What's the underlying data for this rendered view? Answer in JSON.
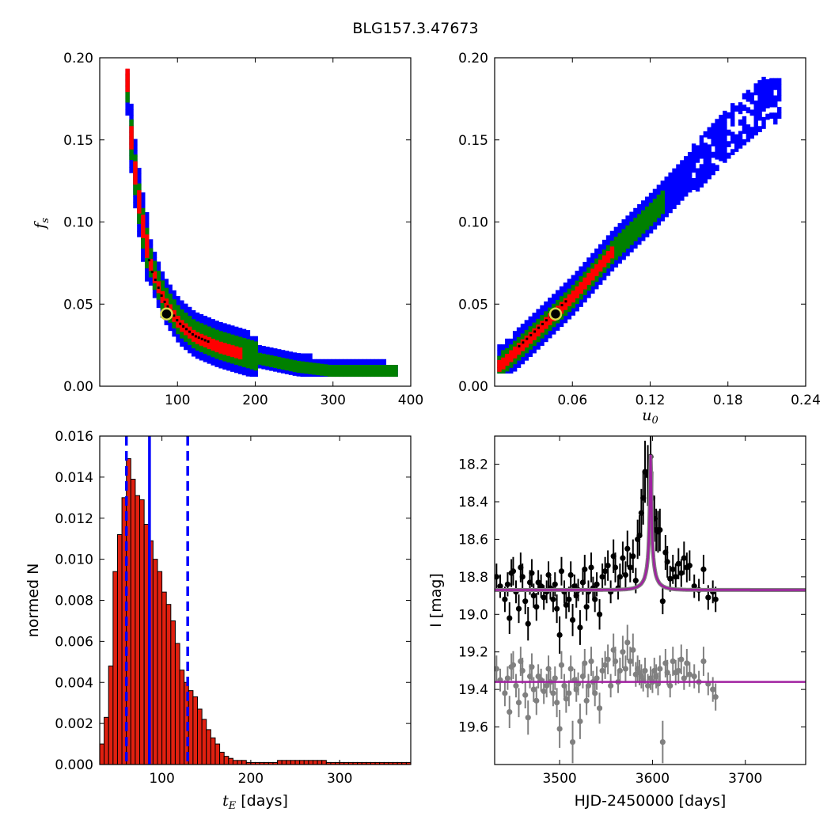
{
  "title": "BLG157.3.47673",
  "colors": {
    "sigma3": "#0000ff",
    "sigma2": "#008000",
    "sigma1": "#ff0000",
    "best": "#000000",
    "model": "#a020a0",
    "marker_ring": "#d8d848",
    "data_main": "#000000",
    "data_resid": "#808080",
    "hist_fill": "#e02010"
  },
  "chart_data": [
    {
      "id": "tE-fs",
      "type": "heatmap",
      "xlabel": "",
      "ylabel": "f_s",
      "xlim": [
        0,
        400
      ],
      "ylim": [
        0,
        0.2
      ],
      "xticks": [
        "100",
        "200",
        "300",
        "400"
      ],
      "yticks": [
        "0.00",
        "0.05",
        "0.10",
        "0.15",
        "0.20"
      ],
      "legend": "none",
      "best_fit": {
        "x": 86,
        "y": 0.044
      },
      "levels": [
        "3-sigma",
        "2-sigma",
        "1-sigma",
        "best"
      ],
      "band": [
        [
          33,
          0.185
        ],
        [
          38,
          0.15
        ],
        [
          45,
          0.12
        ],
        [
          55,
          0.09
        ],
        [
          65,
          0.07
        ],
        [
          80,
          0.052
        ],
        [
          100,
          0.038
        ],
        [
          120,
          0.03
        ],
        [
          150,
          0.024
        ],
        [
          200,
          0.017
        ],
        [
          250,
          0.012
        ],
        [
          300,
          0.009
        ],
        [
          380,
          0.007
        ]
      ]
    },
    {
      "id": "u0-fs",
      "type": "heatmap",
      "xlabel": "u_0",
      "ylabel": "",
      "xlim": [
        0,
        0.24
      ],
      "ylim": [
        0,
        0.2
      ],
      "xticks": [
        "0.06",
        "0.12",
        "0.18",
        "0.24"
      ],
      "yticks": [
        "0.00",
        "0.05",
        "0.10",
        "0.15",
        "0.20"
      ],
      "legend": "none",
      "best_fit": {
        "x": 0.047,
        "y": 0.044
      },
      "band": [
        [
          0.003,
          0.012
        ],
        [
          0.03,
          0.032
        ],
        [
          0.06,
          0.055
        ],
        [
          0.09,
          0.082
        ],
        [
          0.12,
          0.105
        ],
        [
          0.15,
          0.13
        ],
        [
          0.18,
          0.155
        ],
        [
          0.21,
          0.175
        ]
      ]
    },
    {
      "id": "tE-hist",
      "type": "bar",
      "xlabel": "t_E [days]",
      "ylabel": "normed N",
      "xlim": [
        30,
        380
      ],
      "ylim": [
        0,
        0.016
      ],
      "xticks": [
        "100",
        "200",
        "300"
      ],
      "yticks": [
        "0.000",
        "0.002",
        "0.004",
        "0.006",
        "0.008",
        "0.010",
        "0.012",
        "0.014",
        "0.016"
      ],
      "bin_width": 5,
      "bin_start": 30,
      "values": [
        0.001,
        0.0023,
        0.0048,
        0.0094,
        0.0112,
        0.013,
        0.0149,
        0.0139,
        0.0131,
        0.0129,
        0.0117,
        0.0109,
        0.01,
        0.0094,
        0.0084,
        0.0078,
        0.007,
        0.0059,
        0.0046,
        0.004,
        0.0036,
        0.0033,
        0.0027,
        0.0022,
        0.0017,
        0.0013,
        0.001,
        0.0006,
        0.0004,
        0.0003,
        0.0002,
        0.0002,
        0.0002,
        0.0001,
        0.0001,
        0.0001,
        0.0001,
        0.0001,
        0.0001,
        0.0001,
        0.0002,
        0.0002,
        0.0002,
        0.0002,
        0.0002,
        0.0002,
        0.0002,
        0.0002,
        0.0002,
        0.0002,
        0.0002,
        0.0001,
        0.0001,
        0.0001,
        0.0001,
        0.0001,
        0.0001,
        0.0001,
        0.0001,
        0.0001,
        0.0001,
        0.0001,
        0.0001,
        0.0001,
        0.0001,
        0.0001,
        0.0001,
        0.0001,
        0.0001,
        0.0001
      ],
      "median": 86,
      "interval": [
        60,
        129
      ]
    },
    {
      "id": "lightcurve",
      "type": "scatter",
      "xlabel": "HJD-2450000 [days]",
      "ylabel": "I [mag]",
      "xlim": [
        3430,
        3765
      ],
      "ylim": [
        19.8,
        18.05
      ],
      "xticks": [
        "3500",
        "3600",
        "3700"
      ],
      "yticks": [
        "18.2",
        "18.4",
        "18.6",
        "18.8",
        "19.0",
        "19.2",
        "19.4",
        "19.6"
      ],
      "model": {
        "baseline": 18.87,
        "peak": 18.15,
        "t0": 3598,
        "tE": 86,
        "u0": 0.047
      },
      "resid_model_level": 19.36,
      "series": [
        {
          "name": "",
          "points": [
            [
              3432,
              18.8
            ],
            [
              3436,
              18.85
            ],
            [
              3441,
              18.92
            ],
            [
              3444,
              18.84
            ],
            [
              3446,
              19.02
            ],
            [
              3448,
              18.78
            ],
            [
              3450,
              18.77
            ],
            [
              3453,
              18.88
            ],
            [
              3456,
              18.97
            ],
            [
              3458,
              18.75
            ],
            [
              3460,
              18.8
            ],
            [
              3463,
              18.93
            ],
            [
              3466,
              19.05
            ],
            [
              3468,
              18.83
            ],
            [
              3470,
              18.78
            ],
            [
              3472,
              18.9
            ],
            [
              3475,
              18.96
            ],
            [
              3477,
              18.83
            ],
            [
              3480,
              18.85
            ],
            [
              3483,
              18.91
            ],
            [
              3486,
              18.88
            ],
            [
              3488,
              18.79
            ],
            [
              3490,
              18.86
            ],
            [
              3493,
              18.92
            ],
            [
              3495,
              18.84
            ],
            [
              3497,
              18.97
            ],
            [
              3500,
              19.11
            ],
            [
              3502,
              18.77
            ],
            [
              3505,
              18.88
            ],
            [
              3507,
              18.95
            ],
            [
              3510,
              18.92
            ],
            [
              3512,
              18.79
            ],
            [
              3514,
              19.03
            ],
            [
              3516,
              18.85
            ],
            [
              3518,
              18.9
            ],
            [
              3520,
              18.87
            ],
            [
              3522,
              19.07
            ],
            [
              3525,
              18.83
            ],
            [
              3527,
              18.76
            ],
            [
              3529,
              18.96
            ],
            [
              3531,
              18.88
            ],
            [
              3534,
              18.75
            ],
            [
              3536,
              18.86
            ],
            [
              3538,
              18.92
            ],
            [
              3540,
              18.84
            ],
            [
              3543,
              19.0
            ],
            [
              3546,
              18.8
            ],
            [
              3549,
              18.77
            ],
            [
              3552,
              18.74
            ],
            [
              3555,
              18.88
            ],
            [
              3558,
              18.69
            ],
            [
              3560,
              18.75
            ],
            [
              3563,
              18.86
            ],
            [
              3565,
              18.8
            ],
            [
              3568,
              18.7
            ],
            [
              3571,
              18.79
            ],
            [
              3573,
              18.65
            ],
            [
              3576,
              18.75
            ],
            [
              3579,
              18.69
            ],
            [
              3582,
              18.82
            ],
            [
              3584,
              18.6
            ],
            [
              3586,
              18.58
            ],
            [
              3588,
              18.46
            ],
            [
              3590,
              18.38
            ],
            [
              3592,
              18.24
            ],
            [
              3595,
              18.26
            ],
            [
              3598,
              18.16
            ],
            [
              3600,
              18.38
            ],
            [
              3602,
              18.49
            ],
            [
              3604,
              18.55
            ],
            [
              3606,
              18.56
            ],
            [
              3608,
              18.55
            ],
            [
              3611,
              18.93
            ],
            [
              3614,
              18.67
            ],
            [
              3616,
              18.72
            ],
            [
              3619,
              18.81
            ],
            [
              3622,
              18.76
            ],
            [
              3625,
              18.8
            ],
            [
              3628,
              18.73
            ],
            [
              3631,
              18.78
            ],
            [
              3634,
              18.7
            ],
            [
              3637,
              18.75
            ],
            [
              3640,
              18.74
            ],
            [
              3645,
              18.85
            ],
            [
              3650,
              18.87
            ],
            [
              3655,
              18.76
            ],
            [
              3660,
              18.91
            ],
            [
              3665,
              18.88
            ],
            [
              3668,
              18.92
            ]
          ]
        },
        {
          "name": "",
          "points": [
            [
              3432,
              19.29
            ],
            [
              3436,
              19.35
            ],
            [
              3441,
              19.42
            ],
            [
              3444,
              19.34
            ],
            [
              3446,
              19.52
            ],
            [
              3448,
              19.28
            ],
            [
              3450,
              19.27
            ],
            [
              3453,
              19.38
            ],
            [
              3456,
              19.47
            ],
            [
              3458,
              19.25
            ],
            [
              3460,
              19.3
            ],
            [
              3463,
              19.43
            ],
            [
              3466,
              19.55
            ],
            [
              3468,
              19.33
            ],
            [
              3470,
              19.28
            ],
            [
              3472,
              19.4
            ],
            [
              3475,
              19.46
            ],
            [
              3477,
              19.33
            ],
            [
              3480,
              19.35
            ],
            [
              3483,
              19.41
            ],
            [
              3486,
              19.38
            ],
            [
              3488,
              19.29
            ],
            [
              3490,
              19.36
            ],
            [
              3493,
              19.42
            ],
            [
              3495,
              19.34
            ],
            [
              3497,
              19.47
            ],
            [
              3500,
              19.61
            ],
            [
              3502,
              19.27
            ],
            [
              3505,
              19.38
            ],
            [
              3507,
              19.45
            ],
            [
              3510,
              19.42
            ],
            [
              3512,
              19.29
            ],
            [
              3514,
              19.68
            ],
            [
              3516,
              19.35
            ],
            [
              3518,
              19.4
            ],
            [
              3520,
              19.37
            ],
            [
              3522,
              19.57
            ],
            [
              3525,
              19.33
            ],
            [
              3527,
              19.26
            ],
            [
              3529,
              19.46
            ],
            [
              3531,
              19.38
            ],
            [
              3534,
              19.25
            ],
            [
              3536,
              19.36
            ],
            [
              3538,
              19.42
            ],
            [
              3540,
              19.34
            ],
            [
              3543,
              19.5
            ],
            [
              3546,
              19.3
            ],
            [
              3549,
              19.27
            ],
            [
              3552,
              19.24
            ],
            [
              3555,
              19.38
            ],
            [
              3558,
              19.19
            ],
            [
              3560,
              19.25
            ],
            [
              3563,
              19.36
            ],
            [
              3565,
              19.3
            ],
            [
              3568,
              19.2
            ],
            [
              3571,
              19.29
            ],
            [
              3573,
              19.15
            ],
            [
              3576,
              19.25
            ],
            [
              3579,
              19.19
            ],
            [
              3582,
              19.32
            ],
            [
              3584,
              19.29
            ],
            [
              3586,
              19.31
            ],
            [
              3588,
              19.33
            ],
            [
              3590,
              19.35
            ],
            [
              3592,
              19.3
            ],
            [
              3595,
              19.38
            ],
            [
              3598,
              19.34
            ],
            [
              3600,
              19.36
            ],
            [
              3602,
              19.3
            ],
            [
              3604,
              19.33
            ],
            [
              3606,
              19.37
            ],
            [
              3608,
              19.29
            ],
            [
              3611,
              19.68
            ],
            [
              3614,
              19.26
            ],
            [
              3616,
              19.31
            ],
            [
              3619,
              19.38
            ],
            [
              3622,
              19.25
            ],
            [
              3625,
              19.31
            ],
            [
              3628,
              19.3
            ],
            [
              3631,
              19.24
            ],
            [
              3634,
              19.34
            ],
            [
              3637,
              19.26
            ],
            [
              3640,
              19.32
            ],
            [
              3645,
              19.33
            ],
            [
              3650,
              19.36
            ],
            [
              3655,
              19.25
            ],
            [
              3660,
              19.37
            ],
            [
              3665,
              19.4
            ],
            [
              3668,
              19.44
            ]
          ]
        }
      ]
    }
  ]
}
